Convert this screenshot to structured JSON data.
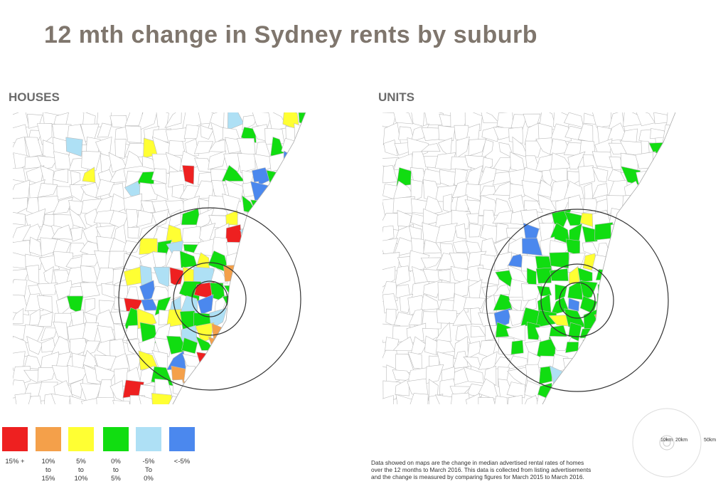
{
  "title": "12 mth change in Sydney rents by suburb",
  "panels": [
    {
      "label": "HOUSES"
    },
    {
      "label": "UNITS"
    }
  ],
  "legend": [
    {
      "label": "15% +",
      "color": "#ee2020"
    },
    {
      "label": "10%\nto\n15%",
      "color": "#f4a04a"
    },
    {
      "label": "5%\nto\n10%",
      "color": "#ffff33"
    },
    {
      "label": "0%\nto\n5%",
      "color": "#11dd11"
    },
    {
      "label": "-5%\nTo\n0%",
      "color": "#aee0f5"
    },
    {
      "label": "<-5%",
      "color": "#4b88ee"
    }
  ],
  "scale_labels": [
    "10km",
    "20km",
    "50km"
  ],
  "footnote": [
    "Data showed on maps are the change in median advertised rental rates of homes",
    "over the 12 months to March 2016. This data is collected from listing advertisements",
    "and the change is measured by comparing figures for March 2015 to March 2016."
  ]
}
